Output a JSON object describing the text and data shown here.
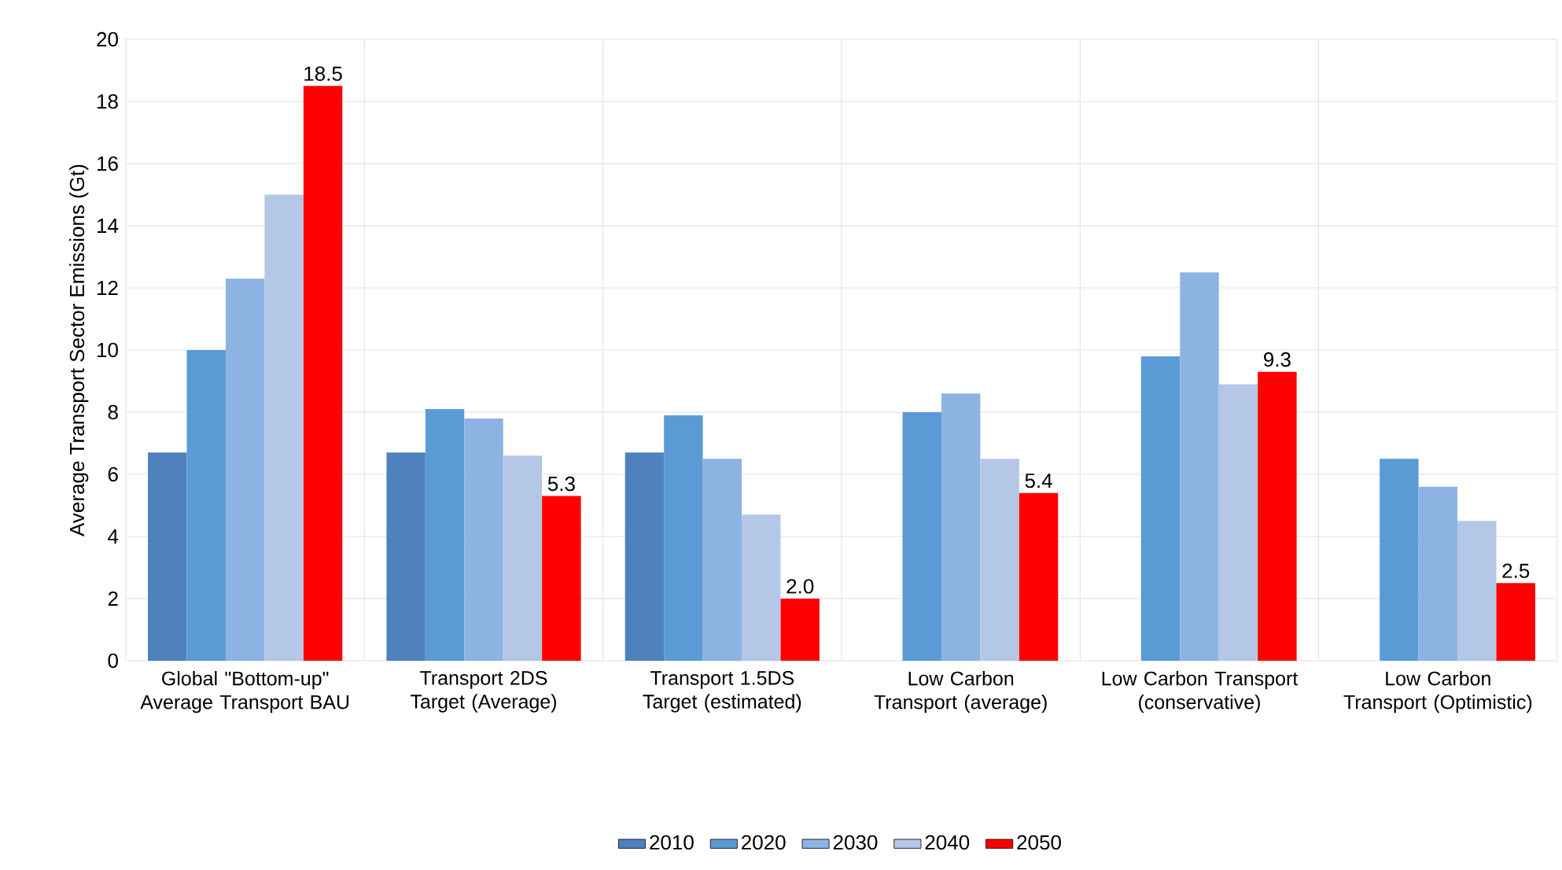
{
  "chart_data": {
    "type": "bar",
    "ylabel": "Average Transport Sector Emissions (Gt)",
    "categories": [
      "Global  \"Bottom-up\" Average Transport BAU",
      "Transport 2DS Target (Average)",
      "Transport 1.5DS Target (estimated)",
      "Low Carbon Transport (average)",
      "Low Carbon Transport (conservative)",
      "Low Carbon Transport (Optimistic)"
    ],
    "series": [
      {
        "name": "2010",
        "color": "#4f81bd",
        "values": [
          6.7,
          6.7,
          6.7,
          null,
          null,
          null
        ]
      },
      {
        "name": "2020",
        "color": "#5b9bd5",
        "values": [
          10.0,
          8.1,
          7.9,
          8.0,
          9.8,
          6.5
        ]
      },
      {
        "name": "2030",
        "color": "#8db3e2",
        "values": [
          12.3,
          7.8,
          6.5,
          8.6,
          12.5,
          5.6
        ]
      },
      {
        "name": "2040",
        "color": "#b4c7e7",
        "values": [
          15.0,
          6.6,
          4.7,
          6.5,
          8.9,
          4.5
        ]
      },
      {
        "name": "2050",
        "color": "#ff0000",
        "values": [
          18.5,
          5.3,
          2.0,
          5.4,
          9.3,
          2.5
        ],
        "value_labels": [
          "18.5",
          "5.3",
          "2.0",
          "5.4",
          "9.3",
          "2.5"
        ]
      }
    ],
    "ylim": [
      0,
      20
    ],
    "yticks": [
      0,
      2,
      4,
      6,
      8,
      10,
      12,
      14,
      16,
      18,
      20
    ],
    "grid": true,
    "legend": "bottom"
  }
}
